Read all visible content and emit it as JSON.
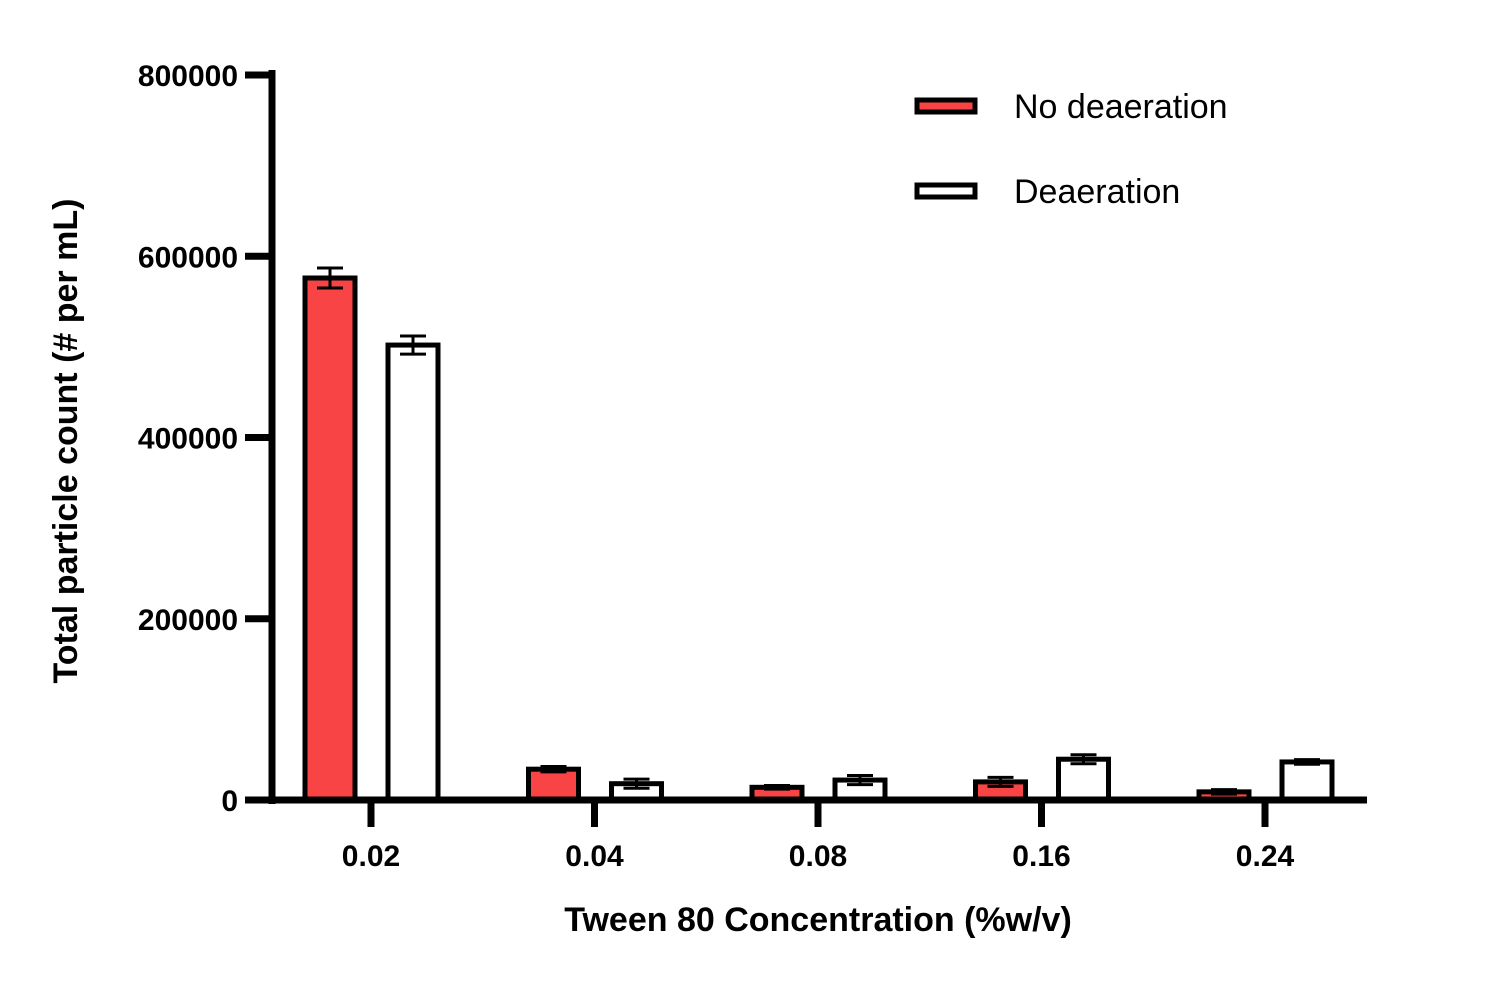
{
  "chart_data": {
    "type": "bar",
    "title": "",
    "xlabel": "Tween 80 Concentration (%w/v)",
    "ylabel": "Total particle count (# per mL)",
    "categories": [
      "0.02",
      "0.04",
      "0.08",
      "0.16",
      "0.24"
    ],
    "series": [
      {
        "name": "No deaeration",
        "values": [
          576000,
          34000,
          14000,
          20000,
          9000
        ],
        "errors": [
          11000,
          3000,
          2000,
          5000,
          2500
        ],
        "fill": "#f84444"
      },
      {
        "name": "Deaeration",
        "values": [
          502000,
          18000,
          22000,
          45000,
          42000
        ],
        "errors": [
          10000,
          5000,
          5000,
          5000,
          2500
        ],
        "fill": "#ffffff"
      }
    ],
    "ylim": [
      0,
      800000
    ],
    "yticks": [
      "0",
      "200000",
      "400000",
      "600000",
      "800000"
    ],
    "ytick_values": [
      0,
      200000,
      400000,
      600000,
      800000
    ],
    "grid": false,
    "legend_position": "top-right",
    "colors": {
      "no_deaeration": "#f84444",
      "deaeration": "#ffffff",
      "stroke": "#000000"
    }
  }
}
